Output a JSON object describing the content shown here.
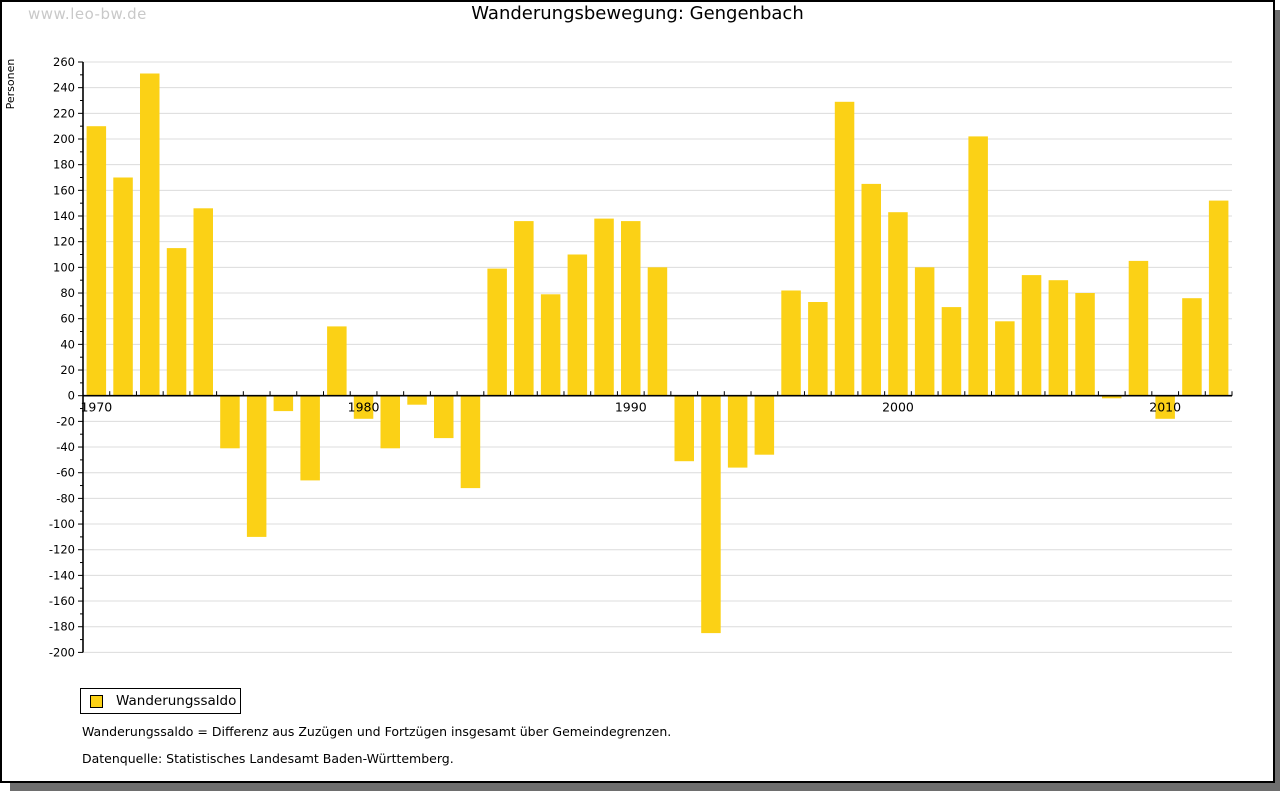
{
  "watermark": "www.leo-bw.de",
  "title": "Wanderungsbewegung: Gengenbach",
  "colors": {
    "bar": "#FBD116",
    "grid": "#DCDCDC",
    "axis": "#000000",
    "text": "#000000",
    "watermark": "#C9C9C9",
    "frame_shadow": "#6E6E6E"
  },
  "chart_data": {
    "type": "bar",
    "title": "Wanderungsbewegung: Gengenbach",
    "xlabel": "",
    "ylabel": "Personen",
    "series_name": "Wanderungssaldo",
    "ylim": [
      -200,
      260
    ],
    "ytick_major_step": 20,
    "ytick_minor_step": 10,
    "grid": true,
    "legend_position": "bottom-left",
    "xticks_labeled": [
      1970,
      1980,
      1990,
      2000,
      2010
    ],
    "years": [
      1970,
      1971,
      1972,
      1973,
      1974,
      1975,
      1976,
      1977,
      1978,
      1979,
      1980,
      1981,
      1982,
      1983,
      1984,
      1985,
      1986,
      1987,
      1988,
      1989,
      1990,
      1991,
      1992,
      1993,
      1994,
      1995,
      1996,
      1997,
      1998,
      1999,
      2000,
      2001,
      2002,
      2003,
      2004,
      2005,
      2006,
      2007,
      2008,
      2009,
      2010,
      2011,
      2012
    ],
    "values": [
      210,
      170,
      251,
      115,
      146,
      -41,
      -110,
      -12,
      -66,
      54,
      -18,
      -41,
      -7,
      -33,
      -72,
      99,
      136,
      79,
      110,
      138,
      136,
      100,
      -51,
      -185,
      -56,
      -46,
      82,
      73,
      229,
      165,
      143,
      100,
      69,
      202,
      58,
      94,
      90,
      80,
      -2,
      105,
      -18,
      76,
      152
    ]
  },
  "legend": {
    "label": "Wanderungssaldo"
  },
  "footnotes": {
    "definition": "Wanderungssaldo = Differenz aus Zuzügen und Fortzügen insgesamt über Gemeindegrenzen.",
    "source": "Datenquelle: Statistisches Landesamt Baden-Württemberg."
  }
}
